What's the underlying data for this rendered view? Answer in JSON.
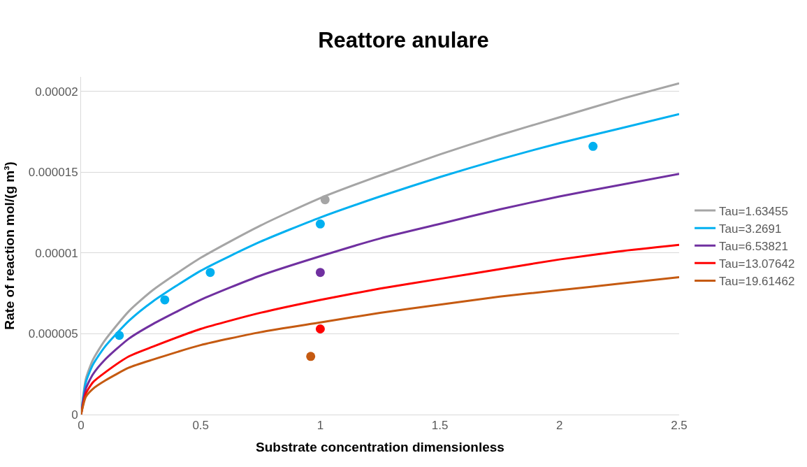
{
  "chart_data": {
    "type": "line",
    "title": "Reattore anulare",
    "xlabel": "Substrate concentration dimensionless",
    "ylabel": "Rate of reaction mol/(g m³)",
    "x": [
      0,
      0.02,
      0.05,
      0.1,
      0.2,
      0.3,
      0.5,
      0.75,
      1,
      1.25,
      1.5,
      1.75,
      2,
      2.25,
      2.5
    ],
    "series": [
      {
        "name": "Tau=1.63455",
        "color": "#a5a5a5",
        "values": [
          0,
          2.2e-06,
          3.4e-06,
          4.6e-06,
          6.4e-06,
          7.7e-06,
          9.7e-06,
          1.17e-05,
          1.34e-05,
          1.48e-05,
          1.61e-05,
          1.73e-05,
          1.84e-05,
          1.95e-05,
          2.05e-05
        ]
      },
      {
        "name": "Tau=3.2691",
        "color": "#00b0f0",
        "values": [
          0,
          2e-06,
          3.1e-06,
          4.2e-06,
          5.8e-06,
          7e-06,
          8.9e-06,
          1.07e-05,
          1.22e-05,
          1.35e-05,
          1.47e-05,
          1.58e-05,
          1.68e-05,
          1.77e-05,
          1.86e-05
        ]
      },
      {
        "name": "Tau=6.53821",
        "color": "#7030a0",
        "values": [
          0,
          1.6e-06,
          2.5e-06,
          3.4e-06,
          4.7e-06,
          5.6e-06,
          7.1e-06,
          8.6e-06,
          9.8e-06,
          1.09e-05,
          1.18e-05,
          1.27e-05,
          1.35e-05,
          1.42e-05,
          1.49e-05
        ]
      },
      {
        "name": "Tau=13.07642",
        "color": "#ff0000",
        "values": [
          0,
          1.3e-06,
          2e-06,
          2.6e-06,
          3.6e-06,
          4.2e-06,
          5.3e-06,
          6.3e-06,
          7.1e-06,
          7.8e-06,
          8.4e-06,
          9e-06,
          9.6e-06,
          1.01e-05,
          1.05e-05
        ]
      },
      {
        "name": "Tau=19.61462",
        "color": "#c55a11",
        "values": [
          0,
          1.1e-06,
          1.6e-06,
          2.1e-06,
          2.9e-06,
          3.4e-06,
          4.3e-06,
          5.1e-06,
          5.7e-06,
          6.3e-06,
          6.8e-06,
          7.3e-06,
          7.7e-06,
          8.1e-06,
          8.5e-06
        ]
      },
      {
        "type": "scatter",
        "color": "#a5a5a5",
        "x": [
          1.02
        ],
        "values": [
          1.33e-05
        ]
      },
      {
        "type": "scatter",
        "color": "#00b0f0",
        "x": [
          0.16,
          0.35,
          0.54,
          1.0,
          2.14
        ],
        "values": [
          4.9e-06,
          7.1e-06,
          8.8e-06,
          1.18e-05,
          1.66e-05
        ]
      },
      {
        "type": "scatter",
        "color": "#7030a0",
        "x": [
          1.0
        ],
        "values": [
          8.8e-06
        ]
      },
      {
        "type": "scatter",
        "color": "#ff0000",
        "x": [
          1.0
        ],
        "values": [
          5.3e-06
        ]
      },
      {
        "type": "scatter",
        "color": "#c55a11",
        "x": [
          0.96
        ],
        "values": [
          3.6e-06
        ]
      }
    ],
    "xlim": [
      0,
      2.5
    ],
    "xticks": [
      0,
      0.5,
      1,
      1.5,
      2,
      2.5
    ],
    "ylim": [
      0,
      2.09e-05
    ],
    "yticks": [
      0,
      {
        "value": 5e-06,
        "label": "0.000005"
      },
      {
        "value": 1e-05,
        "label": "0.00001"
      },
      {
        "value": 1.5e-05,
        "label": "0.000015"
      },
      {
        "value": 2e-05,
        "label": "0.00002"
      }
    ],
    "grid": "y",
    "legend": "right"
  }
}
